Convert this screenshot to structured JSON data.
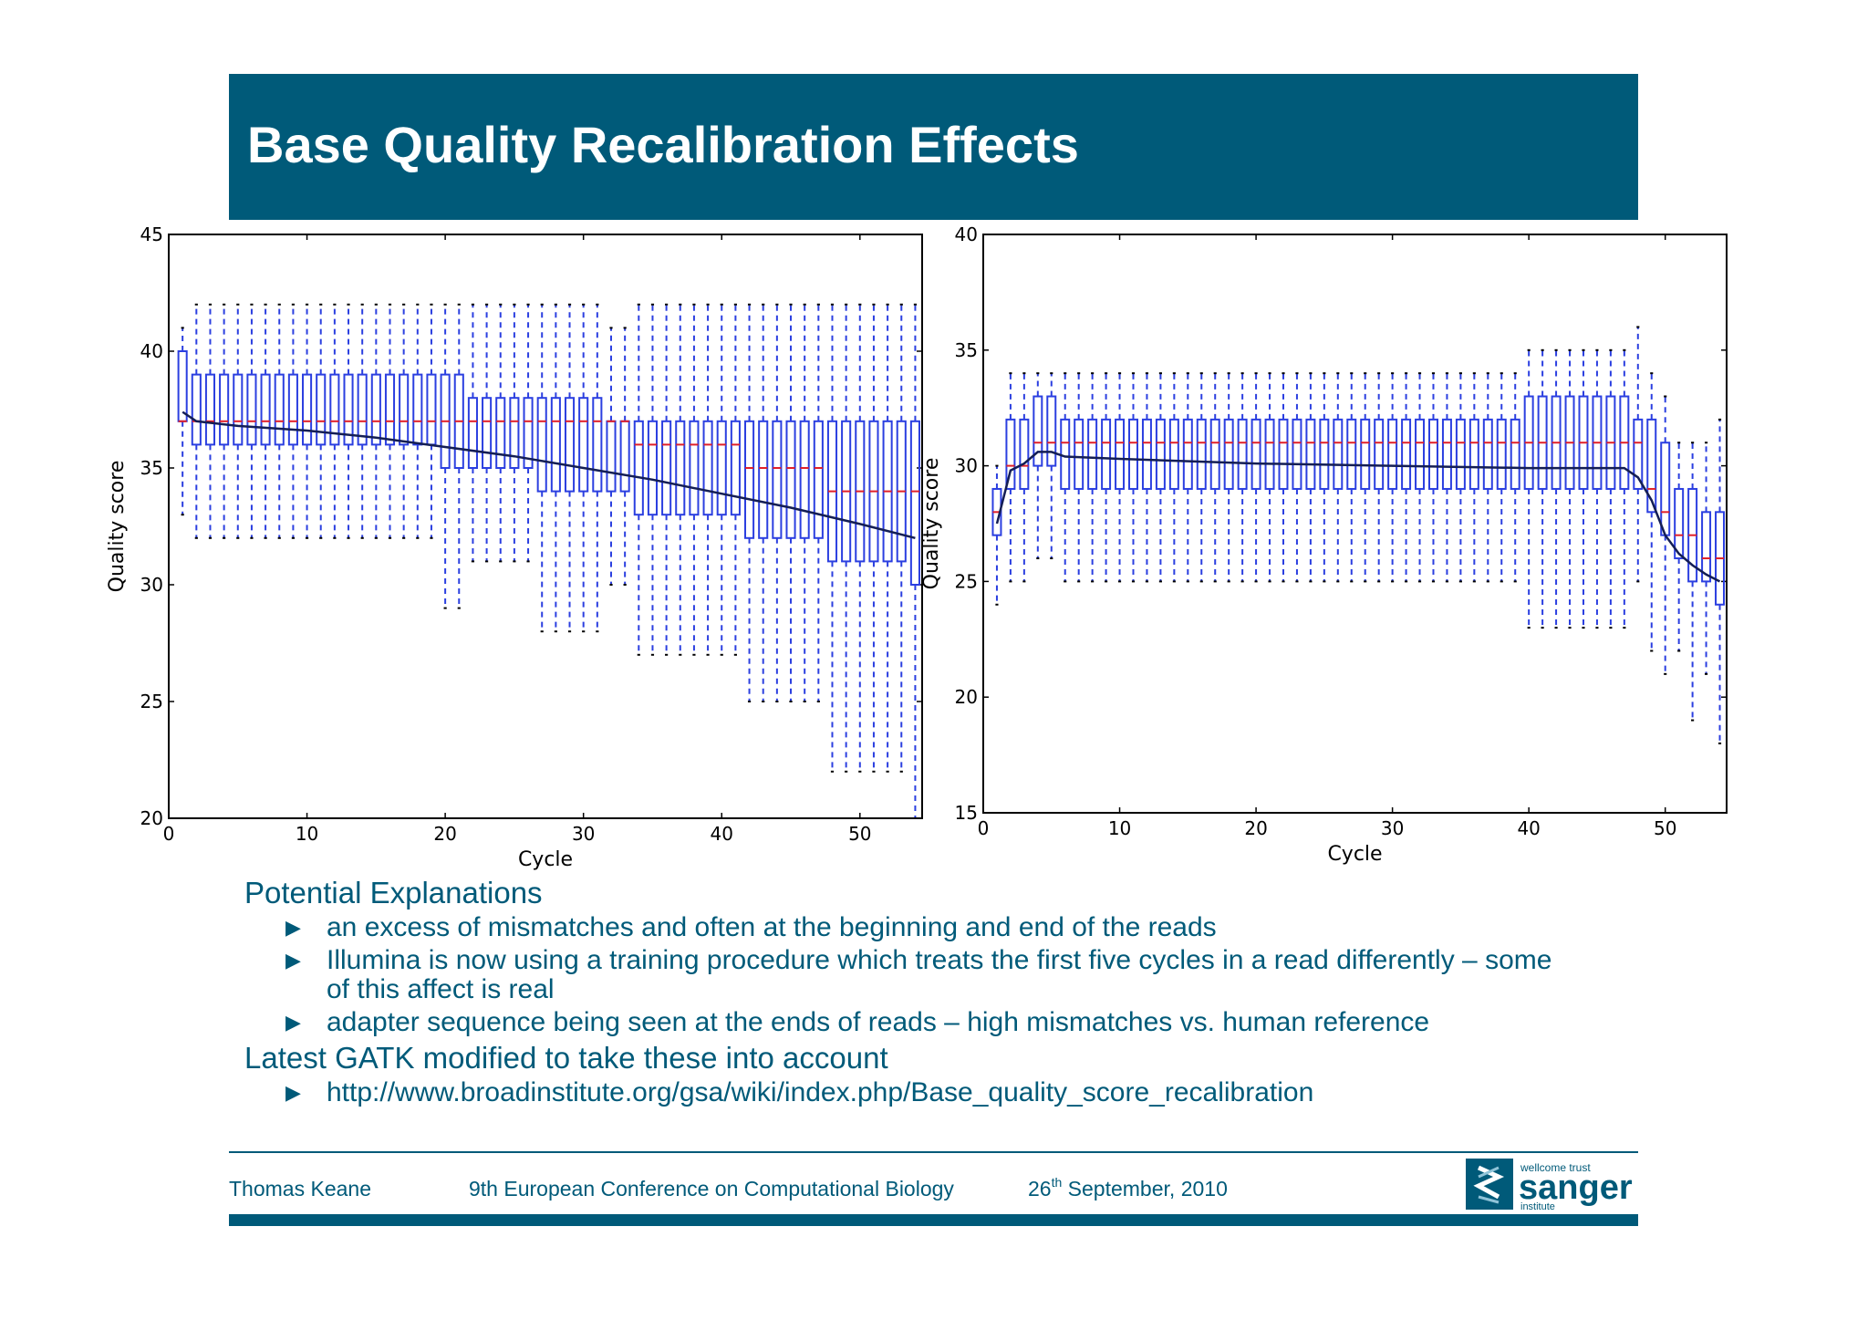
{
  "title": "Base Quality Recalibration Effects",
  "charts": [
    {
      "ylabel": "Quality score",
      "xlabel": "Cycle",
      "xticks": [
        "0",
        "10",
        "20",
        "30",
        "40",
        "50"
      ],
      "yticks": [
        "20",
        "25",
        "30",
        "35",
        "40",
        "45"
      ]
    },
    {
      "ylabel": "Quality score",
      "xlabel": "Cycle",
      "xticks": [
        "0",
        "10",
        "20",
        "30",
        "40",
        "50"
      ],
      "yticks": [
        "15",
        "20",
        "25",
        "30",
        "35",
        "40"
      ]
    }
  ],
  "chart_data": [
    {
      "type": "box",
      "xlabel": "Cycle",
      "ylabel": "Quality score",
      "xlim": [
        0,
        54.5
      ],
      "ylim": [
        20,
        45
      ],
      "x": [
        1,
        2,
        3,
        4,
        5,
        6,
        7,
        8,
        9,
        10,
        11,
        12,
        13,
        14,
        15,
        16,
        17,
        18,
        19,
        20,
        21,
        22,
        23,
        24,
        25,
        26,
        27,
        28,
        29,
        30,
        31,
        32,
        33,
        34,
        35,
        36,
        37,
        38,
        39,
        40,
        41,
        42,
        43,
        44,
        45,
        46,
        47,
        48,
        49,
        50,
        51,
        52,
        53,
        54
      ],
      "box_groups": [
        {
          "from": 1,
          "to": 1,
          "q1": 37,
          "median": 37,
          "q3": 40,
          "whisker_low": 33,
          "whisker_high": 41
        },
        {
          "from": 2,
          "to": 19,
          "q1": 36,
          "median": 37,
          "q3": 39,
          "whisker_low": 32,
          "whisker_high": 42
        },
        {
          "from": 20,
          "to": 21,
          "q1": 35,
          "median": 37,
          "q3": 39,
          "whisker_low": 29,
          "whisker_high": 42
        },
        {
          "from": 22,
          "to": 26,
          "q1": 35,
          "median": 37,
          "q3": 38,
          "whisker_low": 31,
          "whisker_high": 42
        },
        {
          "from": 27,
          "to": 31,
          "q1": 34,
          "median": 37,
          "q3": 38,
          "whisker_low": 28,
          "whisker_high": 42
        },
        {
          "from": 32,
          "to": 33,
          "q1": 34,
          "median": 37,
          "q3": 37,
          "whisker_low": 30,
          "whisker_high": 41
        },
        {
          "from": 34,
          "to": 41,
          "q1": 33,
          "median": 36,
          "q3": 37,
          "whisker_low": 27,
          "whisker_high": 42
        },
        {
          "from": 42,
          "to": 47,
          "q1": 32,
          "median": 35,
          "q3": 37,
          "whisker_low": 25,
          "whisker_high": 42
        },
        {
          "from": 48,
          "to": 53,
          "q1": 31,
          "median": 34,
          "q3": 37,
          "whisker_low": 22,
          "whisker_high": 42
        },
        {
          "from": 54,
          "to": 54,
          "q1": 30,
          "median": 34,
          "q3": 37,
          "whisker_low": 20,
          "whisker_high": 42
        }
      ],
      "mean_line": [
        [
          1,
          37.4
        ],
        [
          2,
          37.0
        ],
        [
          5,
          36.8
        ],
        [
          10,
          36.6
        ],
        [
          15,
          36.3
        ],
        [
          20,
          35.9
        ],
        [
          25,
          35.5
        ],
        [
          30,
          35.0
        ],
        [
          35,
          34.5
        ],
        [
          40,
          33.9
        ],
        [
          45,
          33.3
        ],
        [
          50,
          32.6
        ],
        [
          54,
          32.0
        ]
      ]
    },
    {
      "type": "box",
      "xlabel": "Cycle",
      "ylabel": "Quality score",
      "xlim": [
        0,
        54.5
      ],
      "ylim": [
        15,
        40
      ],
      "x": [
        1,
        2,
        3,
        4,
        5,
        6,
        7,
        8,
        9,
        10,
        11,
        12,
        13,
        14,
        15,
        16,
        17,
        18,
        19,
        20,
        21,
        22,
        23,
        24,
        25,
        26,
        27,
        28,
        29,
        30,
        31,
        32,
        33,
        34,
        35,
        36,
        37,
        38,
        39,
        40,
        41,
        42,
        43,
        44,
        45,
        46,
        47,
        48,
        49,
        50,
        51,
        52,
        53,
        54
      ],
      "box_groups": [
        {
          "from": 1,
          "to": 1,
          "q1": 27,
          "median": 28,
          "q3": 29,
          "whisker_low": 24,
          "whisker_high": 30
        },
        {
          "from": 2,
          "to": 3,
          "q1": 29,
          "median": 30,
          "q3": 32,
          "whisker_low": 25,
          "whisker_high": 34
        },
        {
          "from": 4,
          "to": 5,
          "q1": 30,
          "median": 31,
          "q3": 33,
          "whisker_low": 26,
          "whisker_high": 34
        },
        {
          "from": 6,
          "to": 39,
          "q1": 29,
          "median": 31,
          "q3": 32,
          "whisker_low": 25,
          "whisker_high": 34
        },
        {
          "from": 40,
          "to": 47,
          "q1": 29,
          "median": 31,
          "q3": 33,
          "whisker_low": 23,
          "whisker_high": 35
        },
        {
          "from": 48,
          "to": 48,
          "q1": 29,
          "median": 31,
          "q3": 32,
          "whisker_low": 25,
          "whisker_high": 36
        },
        {
          "from": 49,
          "to": 49,
          "q1": 28,
          "median": 29,
          "q3": 32,
          "whisker_low": 22,
          "whisker_high": 34
        },
        {
          "from": 50,
          "to": 50,
          "q1": 27,
          "median": 28,
          "q3": 31,
          "whisker_low": 21,
          "whisker_high": 33
        },
        {
          "from": 51,
          "to": 51,
          "q1": 26,
          "median": 27,
          "q3": 29,
          "whisker_low": 22,
          "whisker_high": 31
        },
        {
          "from": 52,
          "to": 52,
          "q1": 25,
          "median": 27,
          "q3": 29,
          "whisker_low": 19,
          "whisker_high": 31
        },
        {
          "from": 53,
          "to": 53,
          "q1": 25,
          "median": 26,
          "q3": 28,
          "whisker_low": 21,
          "whisker_high": 31
        },
        {
          "from": 54,
          "to": 54,
          "q1": 24,
          "median": 26,
          "q3": 28,
          "whisker_low": 18,
          "whisker_high": 32
        }
      ],
      "mean_line": [
        [
          1,
          27.5
        ],
        [
          2,
          29.8
        ],
        [
          3,
          30.1
        ],
        [
          4,
          30.6
        ],
        [
          5,
          30.6
        ],
        [
          6,
          30.4
        ],
        [
          10,
          30.3
        ],
        [
          20,
          30.1
        ],
        [
          30,
          30.0
        ],
        [
          40,
          29.9
        ],
        [
          45,
          29.9
        ],
        [
          47,
          29.9
        ],
        [
          48,
          29.5
        ],
        [
          49,
          28.5
        ],
        [
          50,
          27.0
        ],
        [
          51,
          26.2
        ],
        [
          52,
          25.7
        ],
        [
          53,
          25.3
        ],
        [
          54,
          25.0
        ]
      ]
    }
  ],
  "bullets": {
    "heading1": "Potential Explanations",
    "item1": "an excess of mismatches and often at the beginning and end of the reads",
    "item2a": "Illumina is now using a training procedure which treats the first five cycles in a read differently – some",
    "item2b": "of this affect is real",
    "item3": "adapter sequence being seen at the ends of reads – high mismatches vs. human reference",
    "heading2": "Latest GATK modified to take these into account",
    "item4": "http://www.broadinstitute.org/gsa/wiki/index.php/Base_quality_score_recalibration",
    "arrow": "▶"
  },
  "footer": {
    "author": "Thomas Keane",
    "conference": "9th European Conference on Computational Biology",
    "date_day": "26",
    "date_sup": "th",
    "date_rest": " September, 2010"
  },
  "logo": {
    "top": "wellcome trust",
    "main": "sanger",
    "bottom": "institute"
  },
  "colors": {
    "brand": "#005A79",
    "box": "#2B3FE0",
    "median": "#E0202A",
    "mean": "#141E55"
  }
}
